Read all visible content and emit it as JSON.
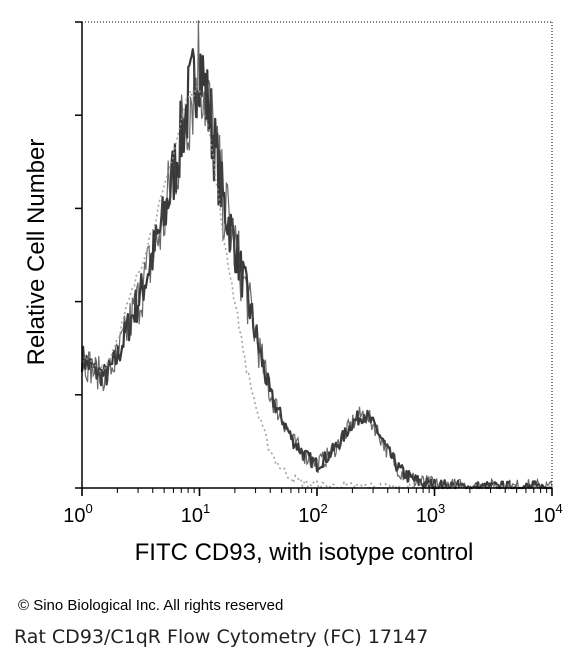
{
  "chart_data": {
    "type": "area",
    "xlabel": "FITC CD93, with isotype control",
    "ylabel": "Relative Cell Number",
    "x_scale": "log",
    "xlim": [
      1,
      10000
    ],
    "ylim": [
      0,
      100
    ],
    "x_tick_labels": [
      {
        "base": "10",
        "exp": "0",
        "value": 1
      },
      {
        "base": "10",
        "exp": "1",
        "value": 10
      },
      {
        "base": "10",
        "exp": "2",
        "value": 100
      },
      {
        "base": "10",
        "exp": "3",
        "value": 1000
      },
      {
        "base": "10",
        "exp": "4",
        "value": 10000
      }
    ],
    "y_ticks": [
      0,
      20,
      40,
      60,
      80,
      100
    ],
    "grid": false,
    "series": [
      {
        "color": "#222222",
        "style": "dense-noisy-solid",
        "x": [
          1,
          1.3,
          1.6,
          2,
          2.5,
          3.2,
          4,
          5,
          6.3,
          7.9,
          10,
          12.6,
          15.8,
          20,
          25,
          32,
          40,
          50,
          63,
          79,
          100,
          126,
          158,
          200,
          251,
          316,
          398,
          501,
          631,
          794,
          1000,
          1259,
          2000,
          5000,
          10000
        ],
        "y": [
          28,
          25,
          24,
          28,
          35,
          42,
          50,
          58,
          70,
          82,
          92,
          78,
          62,
          52,
          42,
          30,
          20,
          15,
          10,
          7,
          5,
          7,
          10,
          14,
          16,
          13,
          8,
          4,
          2,
          1,
          0.5,
          0.3,
          0,
          0,
          0
        ]
      },
      {
        "color": "#999999",
        "style": "dotted-light",
        "x": [
          1,
          1.3,
          1.6,
          2,
          2.5,
          3.2,
          4,
          5,
          6.3,
          7.9,
          10,
          12.6,
          15.8,
          20,
          25,
          32,
          40,
          50,
          63,
          79,
          100,
          126,
          158,
          200,
          251,
          316,
          398,
          501,
          631,
          794,
          1000,
          10000
        ],
        "y": [
          28,
          26,
          26,
          32,
          40,
          48,
          56,
          64,
          74,
          84,
          86,
          74,
          55,
          40,
          26,
          15,
          8,
          4,
          2,
          1,
          0.5,
          0.3,
          0.3,
          0.3,
          0.3,
          0.2,
          0.1,
          0,
          0,
          0,
          0,
          0
        ]
      }
    ]
  },
  "footer": {
    "copyright": "© Sino Biological Inc. All rights reserved",
    "caption": "Rat CD93/C1qR Flow Cytometry (FC) 17147"
  }
}
